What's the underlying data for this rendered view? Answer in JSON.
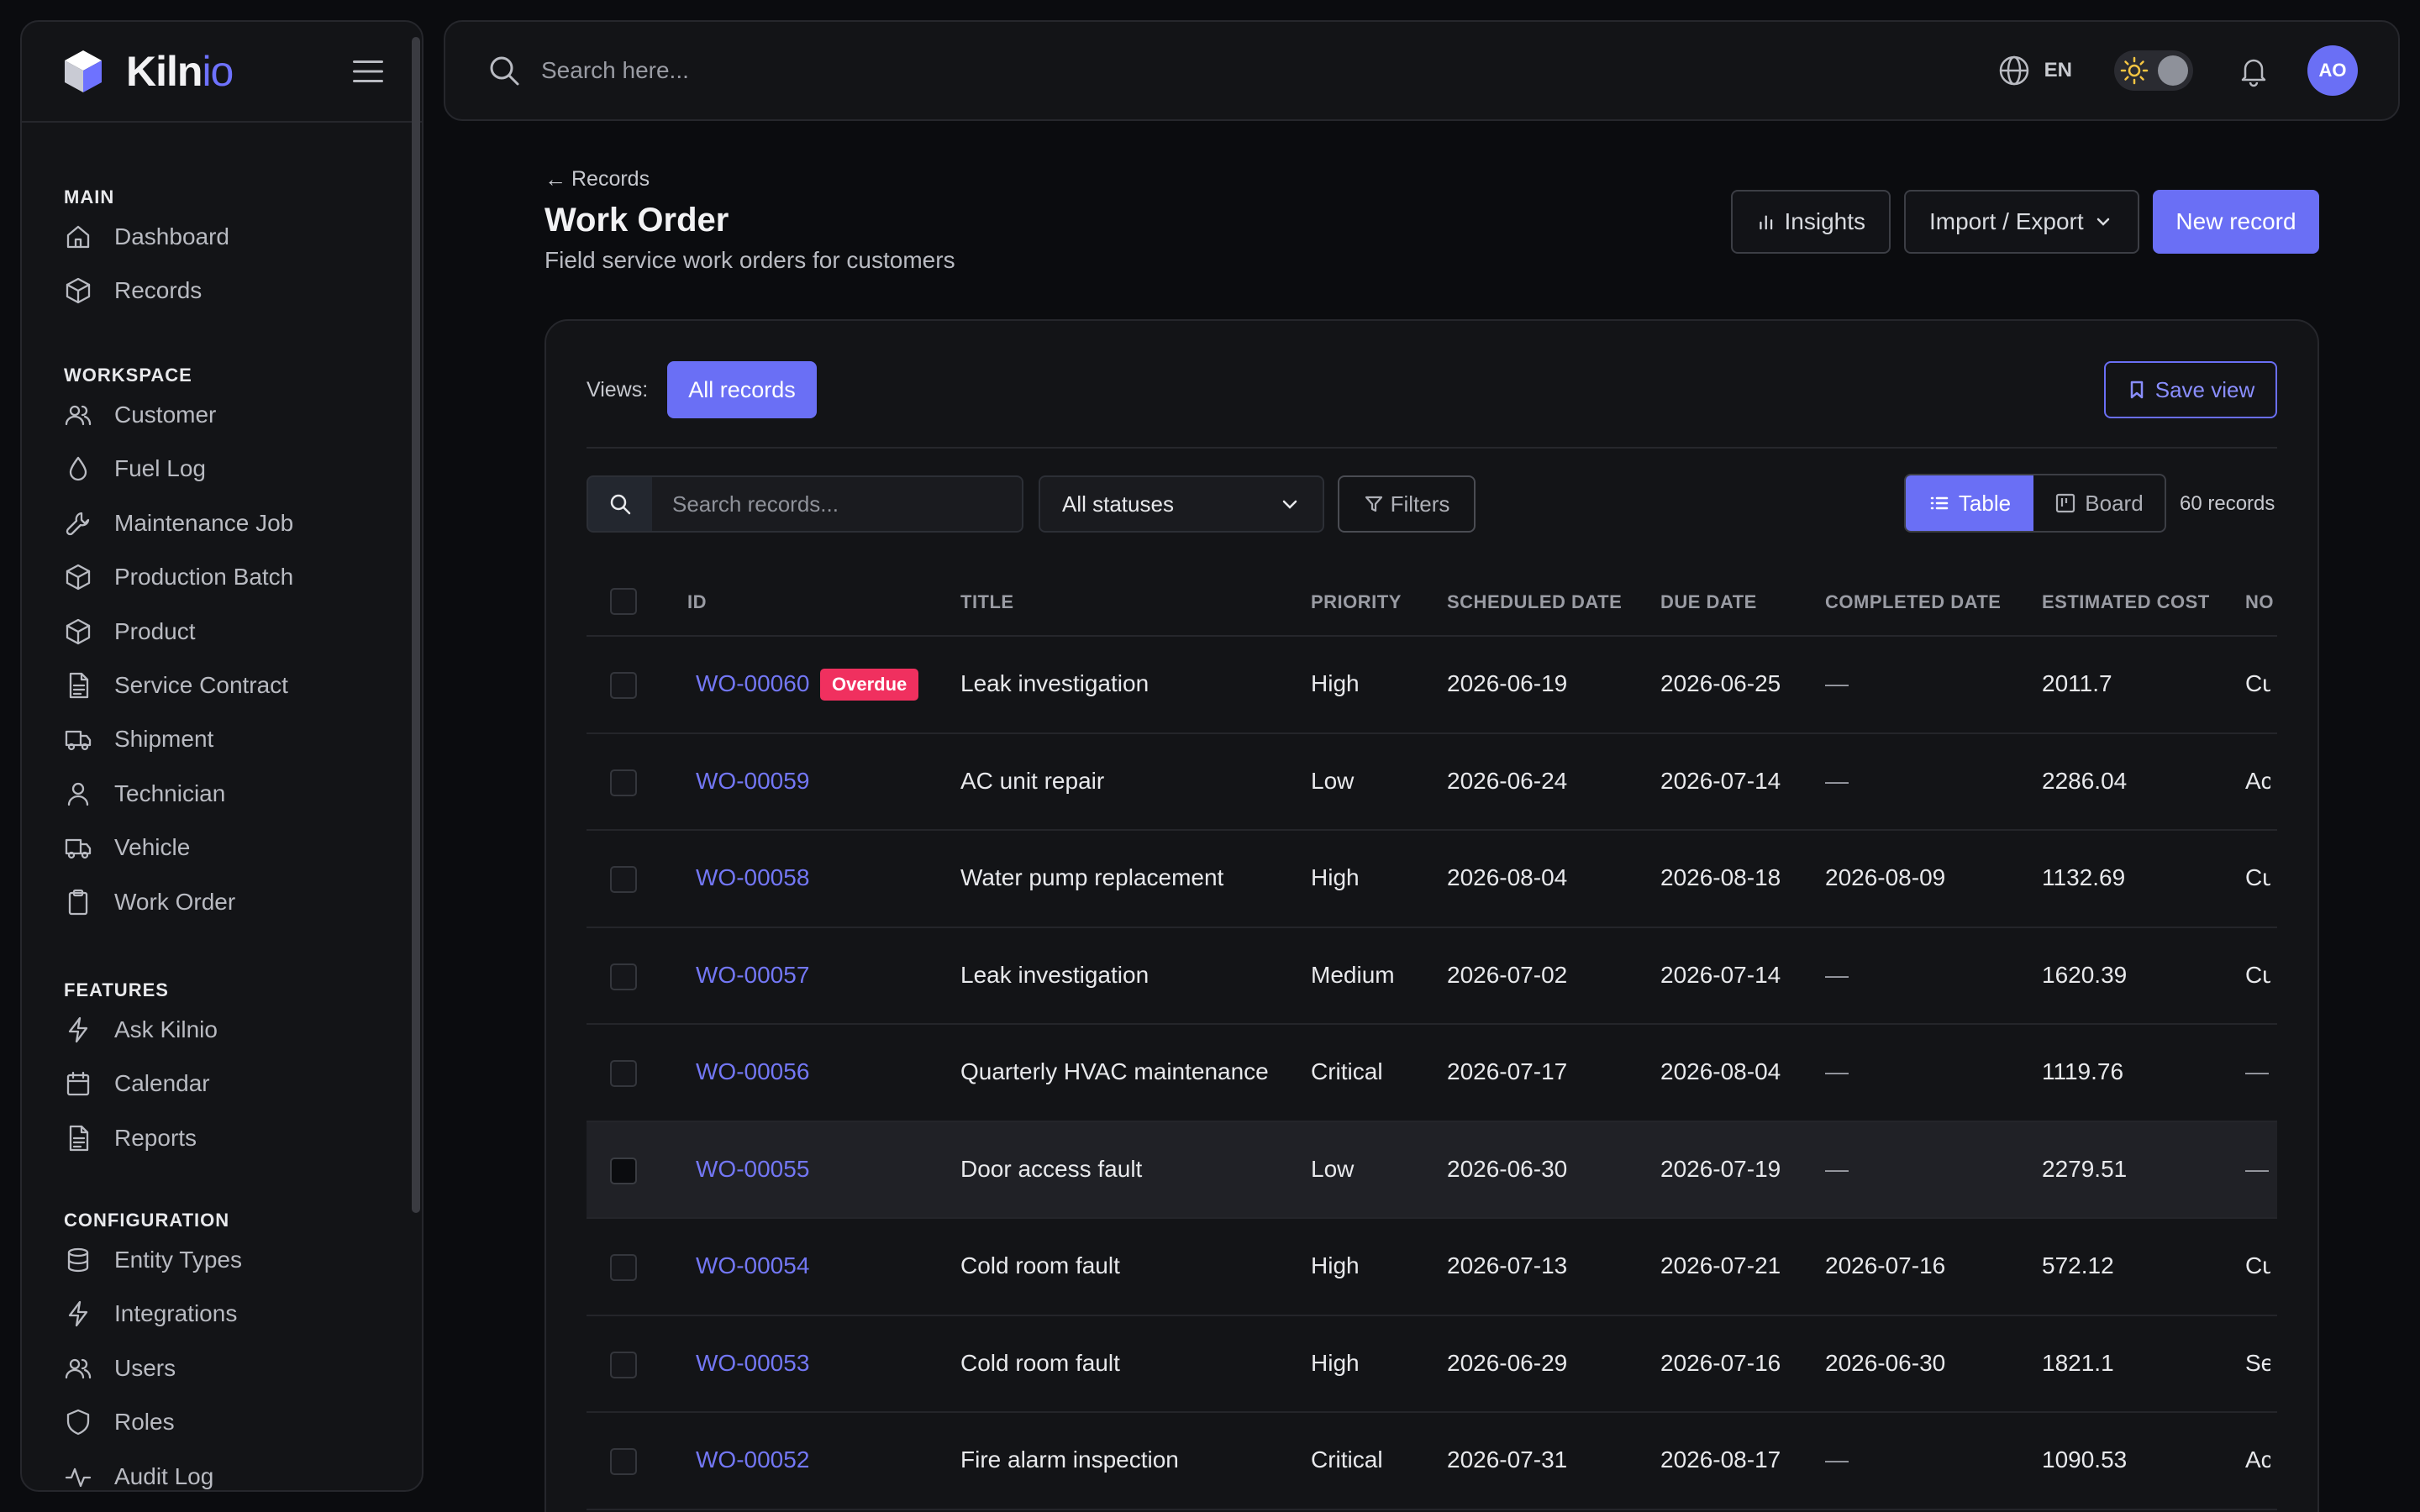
{
  "brand": {
    "name_main": "Kiln",
    "name_accent": "io"
  },
  "sidebar": {
    "sections": [
      {
        "title": "MAIN",
        "items": [
          {
            "label": "Dashboard",
            "icon": "home-icon"
          },
          {
            "label": "Records",
            "icon": "cube-icon"
          }
        ]
      },
      {
        "title": "WORKSPACE",
        "items": [
          {
            "label": "Customer",
            "icon": "users-icon"
          },
          {
            "label": "Fuel Log",
            "icon": "droplet-icon"
          },
          {
            "label": "Maintenance Job",
            "icon": "wrench-icon"
          },
          {
            "label": "Production Batch",
            "icon": "cube-icon"
          },
          {
            "label": "Product",
            "icon": "cube-icon"
          },
          {
            "label": "Service Contract",
            "icon": "document-icon"
          },
          {
            "label": "Shipment",
            "icon": "truck-icon"
          },
          {
            "label": "Technician",
            "icon": "user-icon"
          },
          {
            "label": "Vehicle",
            "icon": "truck-icon"
          },
          {
            "label": "Work Order",
            "icon": "clipboard-icon"
          }
        ]
      },
      {
        "title": "FEATURES",
        "items": [
          {
            "label": "Ask Kilnio",
            "icon": "bolt-icon"
          },
          {
            "label": "Calendar",
            "icon": "calendar-icon"
          },
          {
            "label": "Reports",
            "icon": "document-icon"
          }
        ]
      },
      {
        "title": "CONFIGURATION",
        "items": [
          {
            "label": "Entity Types",
            "icon": "database-icon"
          },
          {
            "label": "Integrations",
            "icon": "bolt-icon"
          },
          {
            "label": "Users",
            "icon": "users-icon"
          },
          {
            "label": "Roles",
            "icon": "shield-icon"
          },
          {
            "label": "Audit Log",
            "icon": "activity-icon"
          }
        ]
      }
    ]
  },
  "topbar": {
    "search_placeholder": "Search here...",
    "language": "EN",
    "avatar_initials": "AO"
  },
  "header": {
    "back_label": "Records",
    "title": "Work Order",
    "subtitle": "Field service work orders for customers",
    "insights_label": "Insights",
    "import_export_label": "Import / Export",
    "new_record_label": "New record"
  },
  "views": {
    "label": "Views:",
    "active_view": "All records",
    "save_view_label": "Save view"
  },
  "toolbar": {
    "search_placeholder": "Search records...",
    "status_filter": "All statuses",
    "filters_label": "Filters",
    "table_label": "Table",
    "board_label": "Board",
    "record_count": "60 records"
  },
  "table": {
    "columns": [
      "ID",
      "TITLE",
      "PRIORITY",
      "SCHEDULED DATE",
      "DUE DATE",
      "COMPLETED DATE",
      "ESTIMATED COST",
      "NO"
    ],
    "rows": [
      {
        "id": "WO-00060",
        "badge": "Overdue",
        "title": "Leak investigation",
        "priority": "High",
        "scheduled": "2026-06-19",
        "due": "2026-06-25",
        "completed": "—",
        "cost": "2011.7",
        "notes": "Cu"
      },
      {
        "id": "WO-00059",
        "badge": "",
        "title": "AC unit repair",
        "priority": "Low",
        "scheduled": "2026-06-24",
        "due": "2026-07-14",
        "completed": "—",
        "cost": "2286.04",
        "notes": "Ac"
      },
      {
        "id": "WO-00058",
        "badge": "",
        "title": "Water pump replacement",
        "priority": "High",
        "scheduled": "2026-08-04",
        "due": "2026-08-18",
        "completed": "2026-08-09",
        "cost": "1132.69",
        "notes": "Cu"
      },
      {
        "id": "WO-00057",
        "badge": "",
        "title": "Leak investigation",
        "priority": "Medium",
        "scheduled": "2026-07-02",
        "due": "2026-07-14",
        "completed": "—",
        "cost": "1620.39",
        "notes": "Cu"
      },
      {
        "id": "WO-00056",
        "badge": "",
        "title": "Quarterly HVAC maintenance",
        "priority": "Critical",
        "scheduled": "2026-07-17",
        "due": "2026-08-04",
        "completed": "—",
        "cost": "1119.76",
        "notes": "—"
      },
      {
        "id": "WO-00055",
        "badge": "",
        "title": "Door access fault",
        "priority": "Low",
        "scheduled": "2026-06-30",
        "due": "2026-07-19",
        "completed": "—",
        "cost": "2279.51",
        "notes": "—"
      },
      {
        "id": "WO-00054",
        "badge": "",
        "title": "Cold room fault",
        "priority": "High",
        "scheduled": "2026-07-13",
        "due": "2026-07-21",
        "completed": "2026-07-16",
        "cost": "572.12",
        "notes": "Cu"
      },
      {
        "id": "WO-00053",
        "badge": "",
        "title": "Cold room fault",
        "priority": "High",
        "scheduled": "2026-06-29",
        "due": "2026-07-16",
        "completed": "2026-06-30",
        "cost": "1821.1",
        "notes": "Se"
      },
      {
        "id": "WO-00052",
        "badge": "",
        "title": "Fire alarm inspection",
        "priority": "Critical",
        "scheduled": "2026-07-31",
        "due": "2026-08-17",
        "completed": "—",
        "cost": "1090.53",
        "notes": "Ac"
      }
    ]
  },
  "colors": {
    "accent": "#6a6ff5",
    "danger": "#f0305f",
    "background": "#0b0c0f",
    "panel": "#131417"
  }
}
